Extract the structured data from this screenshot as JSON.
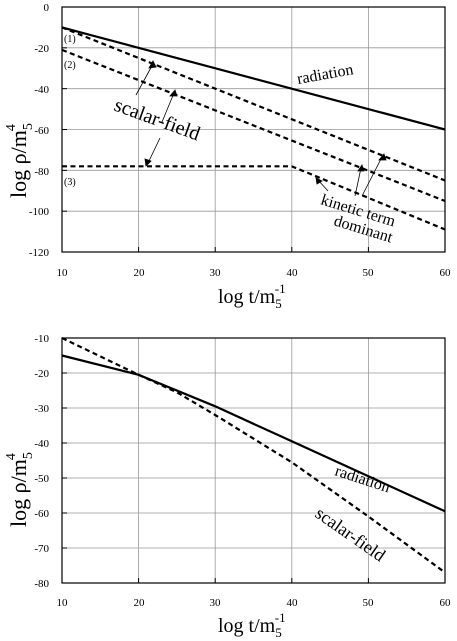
{
  "chart_data": [
    {
      "type": "line",
      "xlim": [
        10,
        60
      ],
      "ylim": [
        -120,
        0
      ],
      "x_ticks": [
        "10",
        "20",
        "30",
        "40",
        "50",
        "60"
      ],
      "y_ticks": [
        "0",
        "-20",
        "-40",
        "-60",
        "-80",
        "-100",
        "-120"
      ],
      "xlabel": {
        "main": "log  t/m",
        "sub": "5",
        "sup": "-1"
      },
      "ylabel": {
        "main": "log ρ/m",
        "sub": "5",
        "sup": "4"
      },
      "grid": true,
      "series": [
        {
          "name": "radiation",
          "style": "solid",
          "x": [
            10,
            60
          ],
          "y": [
            -10,
            -60
          ]
        },
        {
          "name": "(1)",
          "style": "dashed",
          "x": [
            10,
            60
          ],
          "y": [
            -10,
            -85
          ]
        },
        {
          "name": "(2)",
          "style": "dashed",
          "x": [
            10,
            60
          ],
          "y": [
            -21,
            -95
          ]
        },
        {
          "name": "(3)",
          "style": "dashed",
          "x": [
            10,
            40,
            60
          ],
          "y": [
            -78,
            -78,
            -109
          ]
        }
      ],
      "annotations": {
        "radiation": "radiation",
        "scalar_field": "scalar-field",
        "kinetic_line1": "kinetic term",
        "kinetic_line2": "dominant",
        "label1": "(1)",
        "label2": "(2)",
        "label3": "(3)"
      }
    },
    {
      "type": "line",
      "xlim": [
        10,
        60
      ],
      "ylim": [
        -80,
        -10
      ],
      "x_ticks": [
        "10",
        "20",
        "30",
        "40",
        "50",
        "60"
      ],
      "y_ticks": [
        "-10",
        "-20",
        "-30",
        "-40",
        "-50",
        "-60",
        "-70",
        "-80"
      ],
      "xlabel": {
        "main": "log  t/m",
        "sub": "5",
        "sup": "-1"
      },
      "ylabel": {
        "main": "log ρ/m",
        "sub": "5",
        "sup": "4"
      },
      "grid": true,
      "series": [
        {
          "name": "radiation",
          "style": "solid",
          "x": [
            10,
            20,
            30,
            40,
            50,
            60
          ],
          "y": [
            -15,
            -20.5,
            -29.5,
            -39.5,
            -49.5,
            -59.5
          ]
        },
        {
          "name": "scalar-field",
          "style": "dashed",
          "x": [
            10,
            20,
            25,
            30,
            40,
            50,
            60
          ],
          "y": [
            -10,
            -20.5,
            -25.5,
            -32,
            -45.5,
            -61,
            -77
          ]
        }
      ],
      "annotations": {
        "radiation": "radiation",
        "scalar_field": "scalar-field"
      }
    }
  ]
}
